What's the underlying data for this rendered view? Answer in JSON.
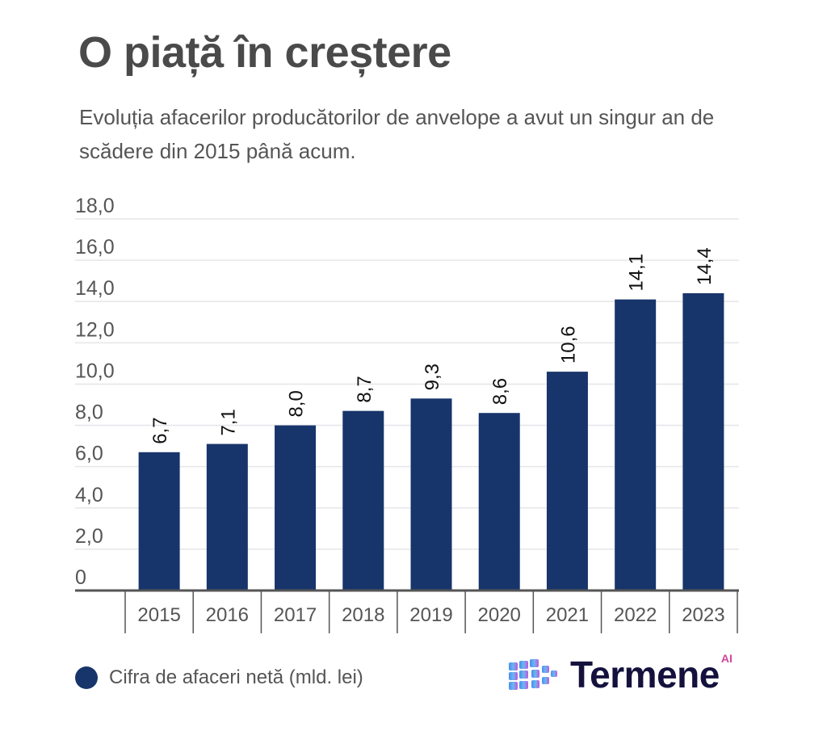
{
  "header": {
    "title": "O piață în creștere",
    "subtitle": "Evoluția afacerilor producătorilor de anvelope a avut un singur an de scădere din 2015 până acum."
  },
  "legend": {
    "label": "Cifra de afaceri netă (mld. lei)",
    "color": "#17356b"
  },
  "logo": {
    "text": "Termene",
    "badge": "AI"
  },
  "chart_data": {
    "type": "bar",
    "title": "O piață în creștere",
    "categories": [
      "2015",
      "2016",
      "2017",
      "2018",
      "2019",
      "2020",
      "2021",
      "2022",
      "2023"
    ],
    "series": [
      {
        "name": "Cifra de afaceri netă (mld. lei)",
        "values": [
          6.7,
          7.1,
          8.0,
          8.7,
          9.3,
          8.6,
          10.6,
          14.1,
          14.4
        ],
        "color": "#17356b"
      }
    ],
    "data_labels": [
      "6,7",
      "7,1",
      "8,0",
      "8,7",
      "9,3",
      "8,6",
      "10,6",
      "14,1",
      "14,4"
    ],
    "yticks": [
      "0",
      "2,0",
      "4,0",
      "6,0",
      "8,0",
      "10,0",
      "12,0",
      "14,0",
      "16,0",
      "18,0"
    ],
    "ylim": [
      0,
      18
    ],
    "grid": true,
    "legend_position": "bottom-left"
  }
}
